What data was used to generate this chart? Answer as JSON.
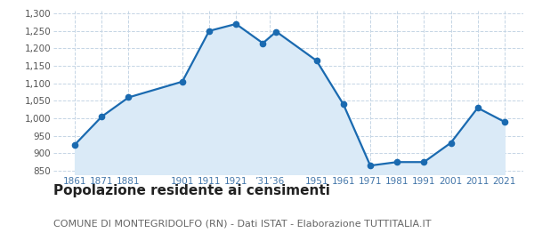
{
  "years": [
    1861,
    1871,
    1881,
    1901,
    1911,
    1921,
    1931,
    1936,
    1951,
    1961,
    1971,
    1981,
    1991,
    2001,
    2011,
    2021
  ],
  "values": [
    925,
    1005,
    1060,
    1105,
    1250,
    1270,
    1215,
    1248,
    1165,
    1040,
    865,
    875,
    875,
    930,
    1030,
    990
  ],
  "ytick_values": [
    850,
    900,
    950,
    1000,
    1050,
    1100,
    1150,
    1200,
    1250,
    1300
  ],
  "ylim": [
    840,
    1310
  ],
  "xlim": [
    1853,
    2028
  ],
  "line_color": "#1a6ab0",
  "fill_color": "#daeaf7",
  "marker_size": 4.5,
  "line_width": 1.6,
  "title": "Popolazione residente ai censimenti",
  "subtitle": "COMUNE DI MONTEGRIDOLFO (RN) - Dati ISTAT - Elaborazione TUTTITALIA.IT",
  "title_fontsize": 11,
  "subtitle_fontsize": 8,
  "background_color": "#ffffff",
  "grid_color": "#c5d5e5",
  "tick_color": "#4477aa",
  "tick_fontsize": 7.5
}
